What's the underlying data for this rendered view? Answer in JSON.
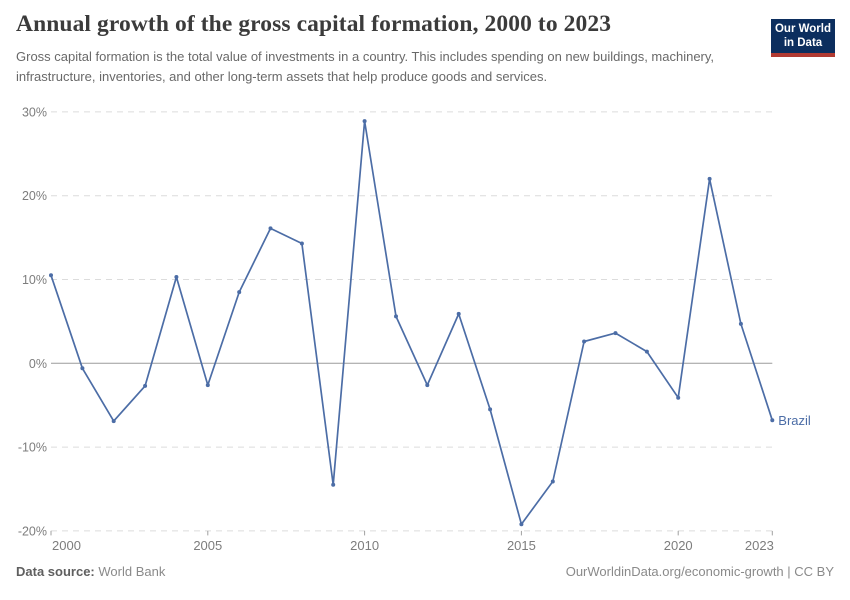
{
  "header": {
    "title": "Annual growth of the gross capital formation, 2000 to 2023",
    "subtitle": "Gross capital formation is the total value of investments in a country. This includes spending on new buildings, machinery, infrastructure, inventories, and other long-term assets that help produce goods and services.",
    "logo": {
      "line1": "Our World",
      "line2": "in Data"
    }
  },
  "footer": {
    "datasource_label": "Data source:",
    "datasource_value": "World Bank",
    "credit": "OurWorldinData.org/economic-growth | CC BY"
  },
  "chart_data": {
    "type": "line",
    "title": "Annual growth of the gross capital formation, 2000 to 2023",
    "xlabel": "",
    "ylabel": "",
    "x": [
      2000,
      2001,
      2002,
      2003,
      2004,
      2005,
      2006,
      2007,
      2008,
      2009,
      2010,
      2011,
      2012,
      2013,
      2014,
      2015,
      2016,
      2017,
      2018,
      2019,
      2020,
      2021,
      2022,
      2023
    ],
    "series": [
      {
        "name": "Brazil",
        "color": "#4c6da6",
        "values": [
          10.5,
          -0.6,
          -6.9,
          -2.7,
          10.3,
          -2.6,
          8.5,
          16.1,
          14.3,
          -14.5,
          28.9,
          5.6,
          -2.6,
          5.9,
          -5.5,
          -19.2,
          -14.1,
          2.6,
          3.6,
          1.4,
          -4.1,
          22.0,
          4.7,
          -6.8
        ]
      }
    ],
    "end_label": "Brazil",
    "xlim": [
      2000,
      2023
    ],
    "ylim": [
      -20,
      30
    ],
    "xticks": [
      2000,
      2005,
      2010,
      2015,
      2020,
      2023
    ],
    "yticks": [
      30,
      20,
      10,
      0,
      -10,
      -20
    ],
    "ytick_suffix": "%",
    "grid": "horizontal-dashed",
    "zero_line": true,
    "legend_position": "end-of-line"
  },
  "colors": {
    "line": "#4c6da6",
    "grid": "#dcdcdc",
    "zero_line": "#9b9b9b",
    "axis_text": "#7d7d7d",
    "tick_mark": "#a0a0a0",
    "logo_bg": "#0c2e5e",
    "logo_bar": "#b13a32"
  }
}
